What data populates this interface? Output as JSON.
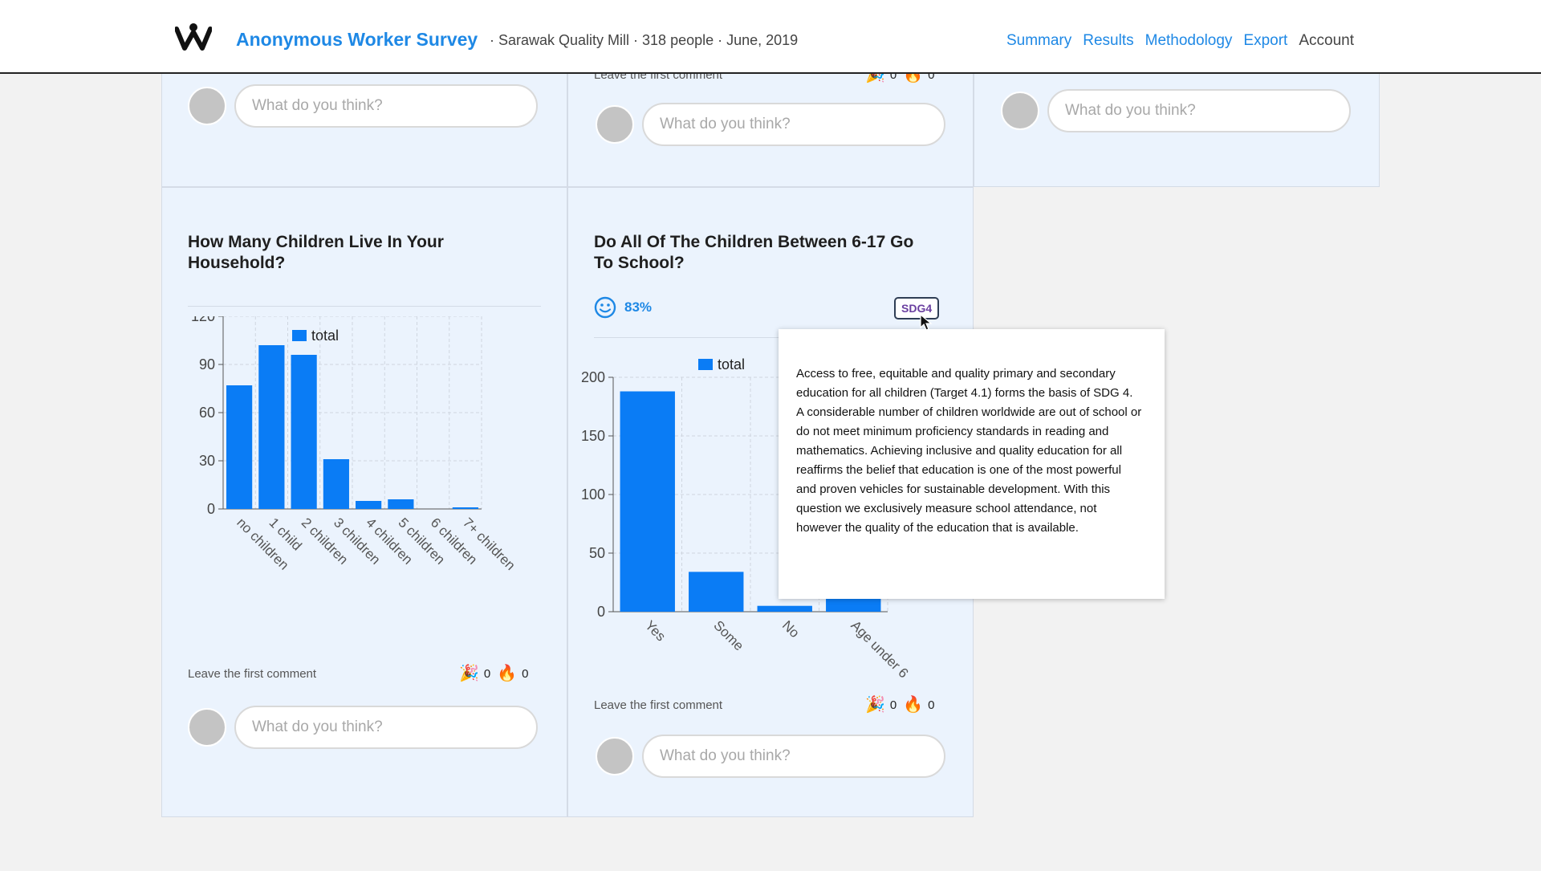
{
  "header": {
    "title": "Anonymous Worker Survey",
    "subtitle": "· Sarawak Quality Mill · 318 people · June, 2019",
    "nav": [
      "Summary",
      "Results",
      "Methodology",
      "Export",
      "Account"
    ]
  },
  "top_cards": [
    {
      "placeholder": "What do you think?"
    },
    {
      "leave_comment": "Leave the first comment",
      "party_count": "0",
      "fire_count": "0",
      "placeholder": "What do you think?"
    },
    {
      "placeholder": "What do you think?"
    }
  ],
  "card_children": {
    "title": "How Many Children Live In Your Household?",
    "leave_comment": "Leave the first comment",
    "party_count": "0",
    "fire_count": "0",
    "placeholder": "What do you think?"
  },
  "card_school": {
    "title": "Do All Of The Children Between 6-17 Go To School?",
    "score": "83%",
    "sdg_label": "SDG4",
    "leave_comment": "Leave the first comment",
    "party_count": "0",
    "fire_count": "0",
    "placeholder": "What do you think?"
  },
  "tooltip": {
    "text": "Access to free, equitable and quality primary and secondary education for all children (Target 4.1) forms the basis of SDG 4. A considerable number of children worldwide are out of school or do not meet minimum proficiency standards in reading and mathematics. Achieving inclusive and quality education for all reaffirms the belief that education is one of the most powerful and proven vehicles for sustainable development. With this question we exclusively measure school attendance, not however the quality of the education that is available."
  },
  "colors": {
    "accent": "#1e88e5",
    "bar": "#0a7cf5",
    "card_bg": "#ebf3fd"
  },
  "chart_data": [
    {
      "type": "bar",
      "title": "",
      "legend": "total",
      "categories": [
        "no children",
        "1 child",
        "2 children",
        "3 children",
        "4 children",
        "5 children",
        "6 children",
        "7+ children"
      ],
      "series": [
        {
          "name": "total",
          "values": [
            77,
            102,
            96,
            31,
            5,
            6,
            0,
            1
          ]
        }
      ],
      "ylim": [
        0,
        120
      ],
      "yticks": [
        0,
        30,
        60,
        90,
        120
      ]
    },
    {
      "type": "bar",
      "title": "",
      "legend": "total",
      "categories": [
        "Yes",
        "Some",
        "No",
        "Age under 6"
      ],
      "series": [
        {
          "name": "total",
          "values": [
            188,
            34,
            5,
            15
          ]
        }
      ],
      "ylim": [
        0,
        200
      ],
      "yticks": [
        0,
        50,
        100,
        150,
        200
      ]
    }
  ]
}
